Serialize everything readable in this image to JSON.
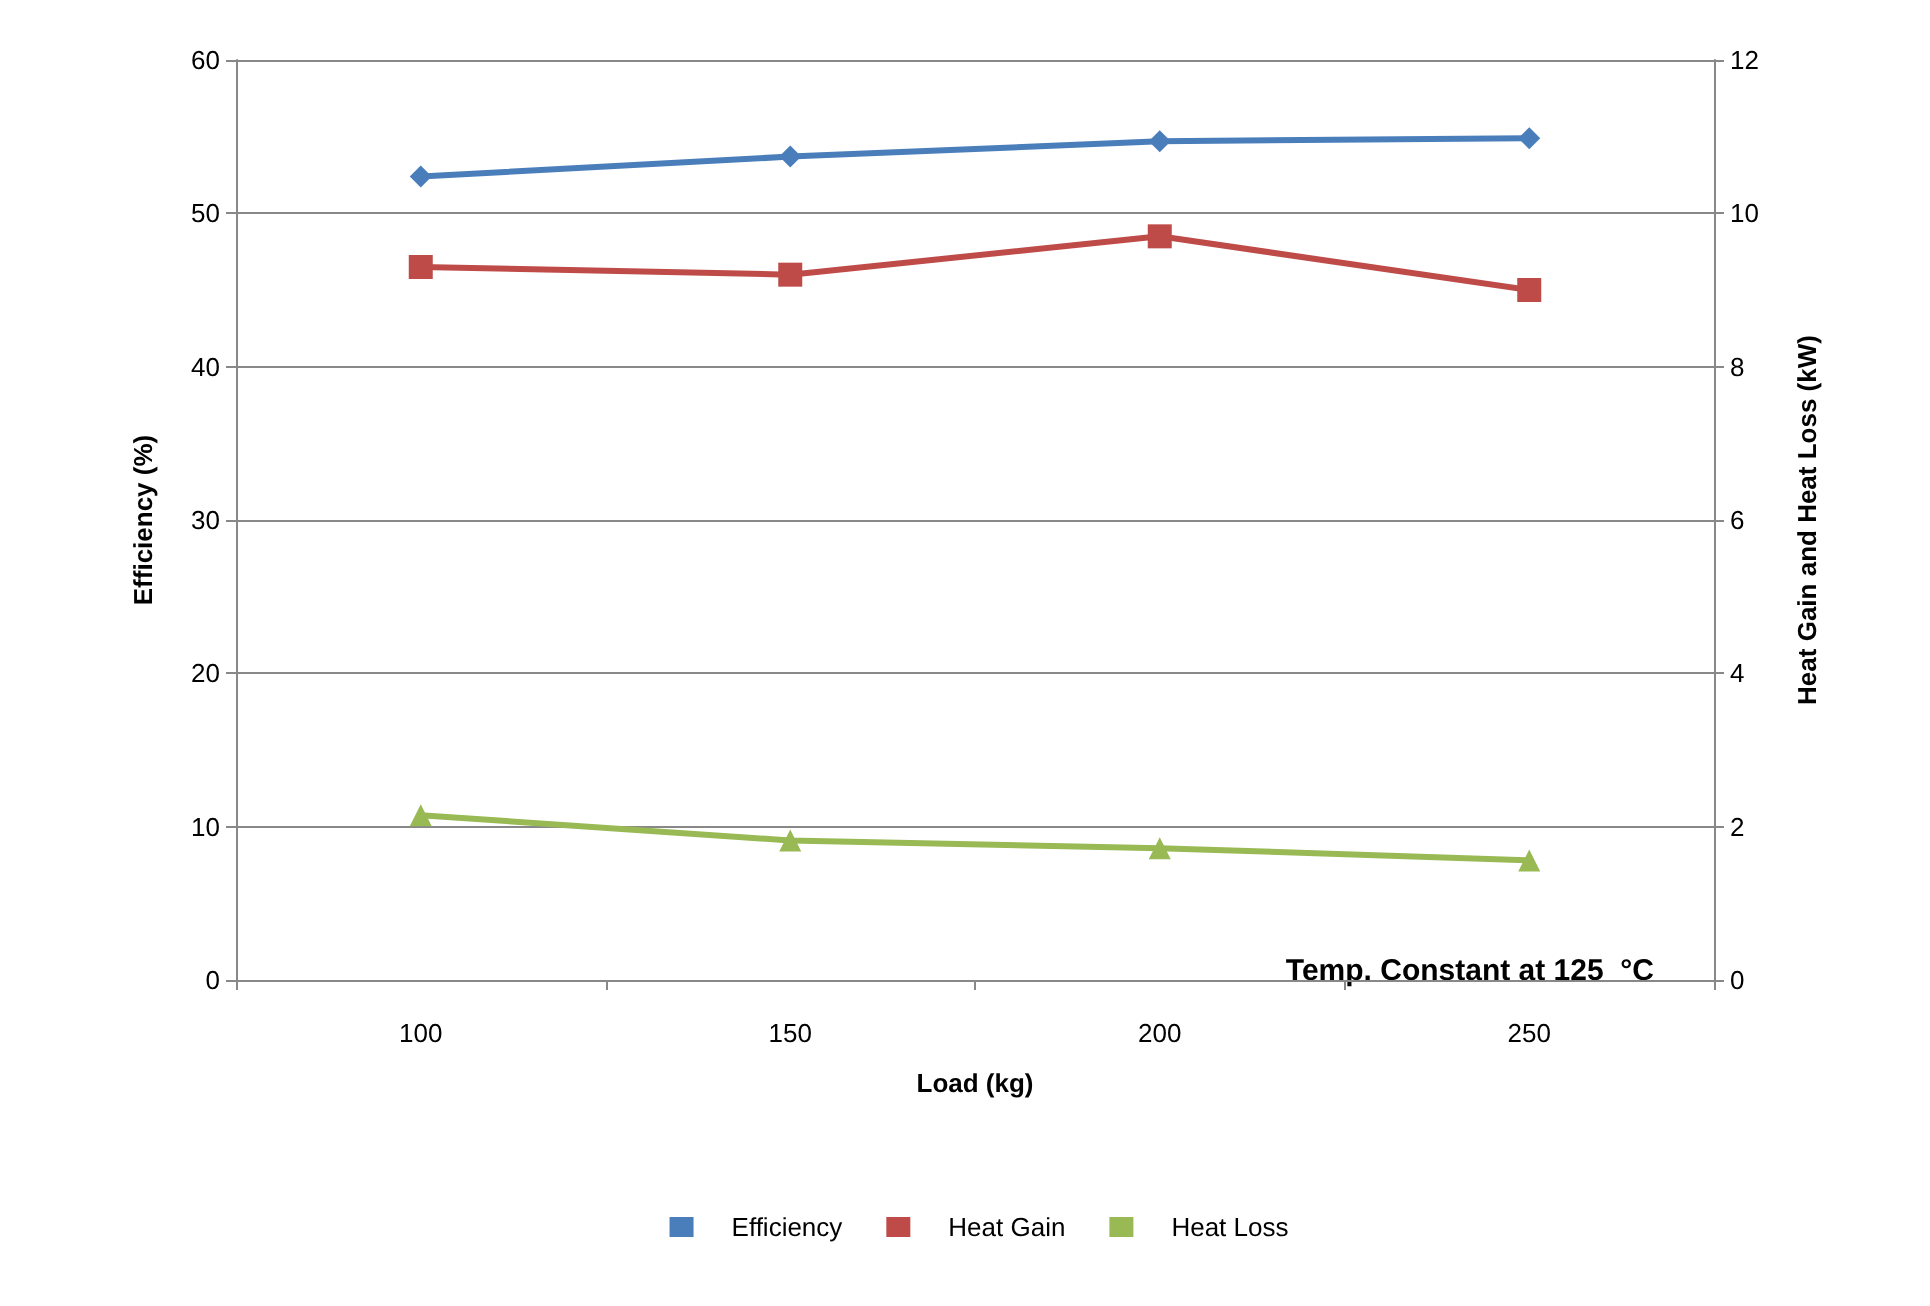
{
  "chart_data": {
    "type": "line",
    "xlabel": "Load (kg)",
    "ylabel": "Efficiency (%)",
    "y2label": "Heat Gain and Heat Loss (kW)",
    "categories": [
      "100",
      "150",
      "200",
      "250"
    ],
    "series": [
      {
        "name": "Efficiency",
        "color": "#4a7ebb",
        "marker": "diamond",
        "values": [
          52.4,
          53.7,
          54.7,
          54.9
        ]
      },
      {
        "name": "Heat Gain",
        "color": "#be4b48",
        "marker": "square",
        "axis": "y2",
        "values": [
          9.3,
          9.2,
          9.7,
          9.0
        ]
      },
      {
        "name": "Heat Loss",
        "color": "#98b954",
        "marker": "triangle",
        "axis": "y2",
        "values": [
          2.15,
          1.82,
          1.72,
          1.56
        ]
      }
    ],
    "ylim": [
      0,
      60
    ],
    "yticks": [
      0,
      10,
      20,
      30,
      40,
      50,
      60
    ],
    "y2lim": [
      0,
      12
    ],
    "y2ticks": [
      0,
      2,
      4,
      6,
      8,
      10,
      12
    ],
    "grid": "y",
    "legend": "bottom",
    "line_style": "solid",
    "annotations": [
      "Temp. Constant at 125  °C"
    ]
  }
}
